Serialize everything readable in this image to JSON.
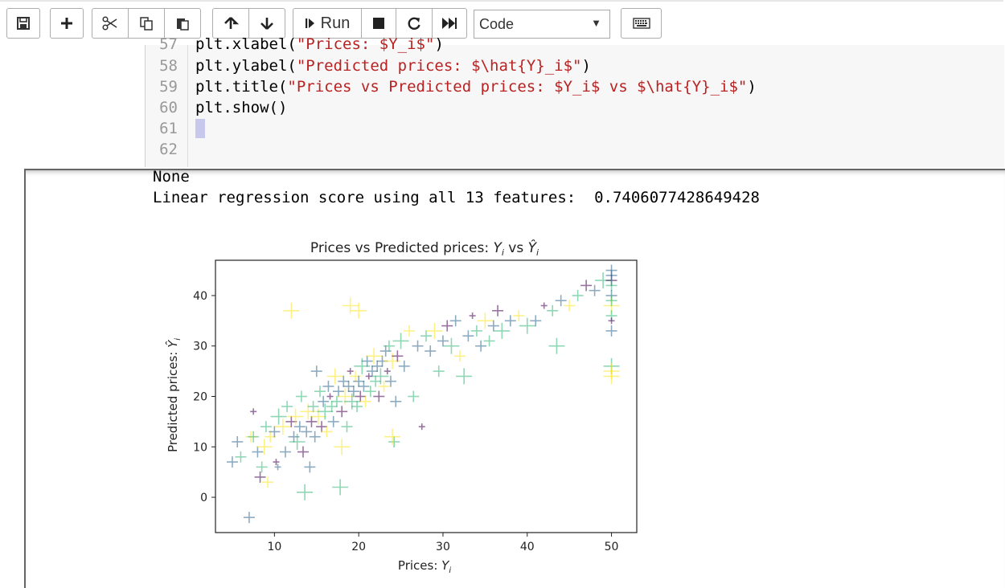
{
  "toolbar": {
    "run_label": "Run",
    "cell_type": "Code",
    "cell_type_options": [
      "Code"
    ],
    "icons": [
      "save-icon",
      "plus-icon",
      "scissors-icon",
      "copy-icon",
      "paste-icon",
      "arrow-up-icon",
      "arrow-down-icon",
      "step-icon",
      "stop-icon",
      "restart-icon",
      "fast-forward-icon",
      "keyboard-icon"
    ]
  },
  "code_cell": {
    "lines": [
      {
        "num": "57",
        "pre": "plt.xlabel(",
        "str": "\"Prices: $Y_i$\"",
        "post": ")"
      },
      {
        "num": "58",
        "pre": "plt.ylabel(",
        "str": "\"Predicted prices: $\\hat{Y}_i$\"",
        "post": ")"
      },
      {
        "num": "59",
        "pre": "plt.title(",
        "str": "\"Prices vs Predicted prices: $Y_i$ vs $\\hat{Y}_i$\"",
        "post": ")"
      },
      {
        "num": "60",
        "pre": "plt.show()",
        "str": "",
        "post": ""
      },
      {
        "num": "61",
        "pre": "",
        "str": "",
        "post": ""
      },
      {
        "num": "62",
        "pre": "",
        "str": "",
        "post": ""
      }
    ]
  },
  "output": {
    "line1": "None",
    "line2": "Linear regression score using all 13 features:  0.7406077428649428"
  },
  "chart_data": {
    "type": "scatter",
    "title": "Prices vs Predicted prices: Y_i vs Ŷ_i",
    "xlabel": "Prices: Y_i",
    "ylabel": "Predicted prices: Ŷ_i",
    "xlim": [
      3,
      53
    ],
    "ylim": [
      -7,
      47
    ],
    "xticks": [
      10,
      20,
      30,
      40,
      50
    ],
    "yticks": [
      0,
      10,
      20,
      30,
      40
    ],
    "marker": "+",
    "colormap": [
      "#440154",
      "#31688e",
      "#35b779",
      "#fde725"
    ],
    "points": [
      [
        5,
        7,
        1,
        1
      ],
      [
        5.6,
        11,
        1,
        1
      ],
      [
        6,
        8,
        2,
        1
      ],
      [
        7,
        -4,
        1,
        1
      ],
      [
        7.2,
        12,
        3,
        1
      ],
      [
        7.5,
        17,
        0,
        0
      ],
      [
        8,
        9,
        1,
        1
      ],
      [
        8.3,
        4,
        0,
        1
      ],
      [
        8.5,
        6,
        2,
        1
      ],
      [
        8.8,
        10,
        3,
        2
      ],
      [
        9,
        14,
        2,
        1
      ],
      [
        9.5,
        12,
        3,
        1
      ],
      [
        10,
        13,
        1,
        1
      ],
      [
        10.2,
        7,
        0,
        0
      ],
      [
        10.4,
        6,
        1,
        0
      ],
      [
        10.5,
        16,
        2,
        2
      ],
      [
        11,
        14,
        3,
        2
      ],
      [
        11.3,
        9,
        1,
        1
      ],
      [
        11.5,
        18,
        2,
        1
      ],
      [
        12,
        15,
        0,
        1
      ],
      [
        12.3,
        12,
        1,
        1
      ],
      [
        12.5,
        16,
        3,
        2
      ],
      [
        12.7,
        11,
        2,
        2
      ],
      [
        13,
        14,
        1,
        1
      ],
      [
        13.2,
        20,
        2,
        1
      ],
      [
        13.4,
        9,
        0,
        1
      ],
      [
        13.6,
        1,
        2,
        2
      ],
      [
        13.8,
        13,
        1,
        1
      ],
      [
        14,
        17,
        3,
        2
      ],
      [
        14.2,
        6,
        1,
        1
      ],
      [
        14.4,
        15,
        0,
        1
      ],
      [
        14.6,
        18,
        2,
        1
      ],
      [
        14.8,
        12,
        1,
        1
      ],
      [
        15,
        25,
        1,
        1
      ],
      [
        15.2,
        16,
        3,
        2
      ],
      [
        15.4,
        21,
        2,
        1
      ],
      [
        15.6,
        14,
        0,
        1
      ],
      [
        15.8,
        19,
        1,
        1
      ],
      [
        16,
        17,
        2,
        2
      ],
      [
        16.2,
        13,
        3,
        1
      ],
      [
        16.4,
        22,
        1,
        1
      ],
      [
        16.6,
        20,
        0,
        0
      ],
      [
        16.8,
        18,
        2,
        1
      ],
      [
        17,
        15,
        1,
        1
      ],
      [
        17.2,
        24,
        3,
        2
      ],
      [
        17.4,
        19,
        2,
        1
      ],
      [
        17.6,
        21,
        1,
        1
      ],
      [
        17.8,
        2,
        2,
        2
      ],
      [
        18,
        17,
        0,
        1
      ],
      [
        18.2,
        23,
        1,
        1
      ],
      [
        18.4,
        20,
        3,
        2
      ],
      [
        18.6,
        14,
        2,
        1
      ],
      [
        18.8,
        22,
        1,
        1
      ],
      [
        19,
        25,
        0,
        0
      ],
      [
        19.2,
        19,
        2,
        2
      ],
      [
        19.4,
        21,
        1,
        1
      ],
      [
        19.6,
        24,
        3,
        1
      ],
      [
        19.8,
        18,
        2,
        1
      ],
      [
        20,
        23,
        1,
        1
      ],
      [
        20.2,
        20,
        0,
        1
      ],
      [
        20.4,
        26,
        2,
        2
      ],
      [
        20.6,
        22,
        1,
        1
      ],
      [
        20.8,
        19,
        3,
        1
      ],
      [
        21,
        27,
        1,
        1
      ],
      [
        21.2,
        24,
        0,
        0
      ],
      [
        21.4,
        21,
        2,
        1
      ],
      [
        21.6,
        25,
        1,
        1
      ],
      [
        21.8,
        28,
        3,
        2
      ],
      [
        22,
        23,
        2,
        1
      ],
      [
        22.2,
        26,
        1,
        1
      ],
      [
        22.4,
        20,
        0,
        1
      ],
      [
        22.6,
        24,
        2,
        2
      ],
      [
        22.8,
        27,
        1,
        1
      ],
      [
        23,
        22,
        3,
        1
      ],
      [
        23.2,
        29,
        1,
        1
      ],
      [
        23.4,
        25,
        0,
        0
      ],
      [
        23.6,
        30,
        2,
        1
      ],
      [
        23.8,
        23,
        1,
        1
      ],
      [
        24,
        27,
        3,
        2
      ],
      [
        24.2,
        11,
        2,
        1
      ],
      [
        24.4,
        19,
        1,
        1
      ],
      [
        24.6,
        28,
        0,
        1
      ],
      [
        25,
        31,
        2,
        2
      ],
      [
        25.4,
        26,
        1,
        1
      ],
      [
        26,
        33,
        3,
        1
      ],
      [
        26.5,
        20,
        2,
        1
      ],
      [
        27,
        30,
        1,
        1
      ],
      [
        27.5,
        14,
        0,
        0
      ],
      [
        28,
        32,
        2,
        1
      ],
      [
        28.5,
        29,
        1,
        1
      ],
      [
        29,
        33,
        3,
        2
      ],
      [
        29.5,
        25,
        2,
        1
      ],
      [
        30,
        31,
        1,
        1
      ],
      [
        30.5,
        34,
        0,
        1
      ],
      [
        31,
        30,
        2,
        2
      ],
      [
        31.5,
        35,
        1,
        1
      ],
      [
        32,
        28,
        3,
        1
      ],
      [
        32.5,
        24,
        2,
        2
      ],
      [
        33,
        32,
        1,
        1
      ],
      [
        33.5,
        36,
        0,
        0
      ],
      [
        34,
        33,
        2,
        1
      ],
      [
        34.5,
        30,
        1,
        1
      ],
      [
        35,
        35,
        3,
        2
      ],
      [
        35.5,
        31,
        2,
        1
      ],
      [
        36,
        34,
        1,
        1
      ],
      [
        36.5,
        37,
        0,
        1
      ],
      [
        37,
        33,
        2,
        2
      ],
      [
        38,
        35,
        1,
        1
      ],
      [
        39,
        36,
        3,
        1
      ],
      [
        40,
        34,
        2,
        2
      ],
      [
        41,
        35,
        1,
        1
      ],
      [
        42,
        38,
        0,
        0
      ],
      [
        43,
        37,
        2,
        1
      ],
      [
        43.5,
        30,
        2,
        2
      ],
      [
        44,
        39,
        1,
        1
      ],
      [
        45,
        38,
        3,
        1
      ],
      [
        46,
        40,
        2,
        1
      ],
      [
        47,
        42,
        0,
        1
      ],
      [
        48,
        41,
        1,
        1
      ],
      [
        49,
        43,
        2,
        2
      ],
      [
        50,
        45,
        1,
        1
      ],
      [
        50,
        43,
        0,
        1
      ],
      [
        50,
        42,
        2,
        1
      ],
      [
        50,
        40,
        1,
        1
      ],
      [
        50,
        38,
        3,
        2
      ],
      [
        50,
        36,
        2,
        1
      ],
      [
        50,
        35,
        0,
        0
      ],
      [
        50,
        33,
        1,
        1
      ],
      [
        50,
        26,
        2,
        2
      ],
      [
        50,
        25,
        3,
        2
      ],
      [
        50,
        24,
        3,
        2
      ],
      [
        50,
        44,
        1,
        1
      ],
      [
        50,
        39,
        2,
        1
      ],
      [
        12,
        37,
        3,
        2
      ],
      [
        18,
        10,
        3,
        2
      ],
      [
        24,
        12,
        3,
        2
      ],
      [
        20,
        37,
        3,
        2
      ],
      [
        19,
        38,
        3,
        2
      ],
      [
        7.5,
        12,
        2,
        1
      ],
      [
        9.2,
        3,
        3,
        1
      ]
    ]
  }
}
